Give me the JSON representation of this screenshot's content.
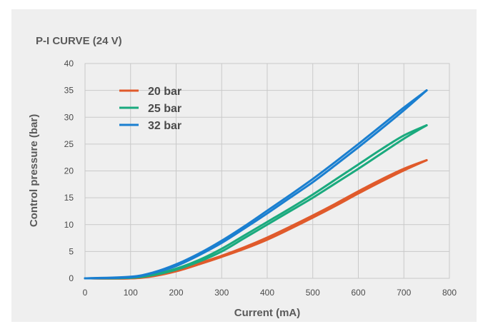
{
  "chart_data": {
    "type": "line",
    "title": "P-I CURVE (24 V)",
    "xlabel": "Current (mA)",
    "ylabel": "Control pressure (bar)",
    "xlim": [
      0,
      800
    ],
    "ylim": [
      0,
      40
    ],
    "x_ticks": [
      0,
      100,
      200,
      300,
      400,
      500,
      600,
      700,
      800
    ],
    "y_ticks": [
      0,
      5,
      10,
      15,
      20,
      25,
      30,
      35,
      40
    ],
    "grid": true,
    "legend_position": "top-left",
    "series": [
      {
        "name": "20 bar",
        "color": "#e05a2b",
        "up": {
          "x": [
            0,
            100,
            150,
            200,
            250,
            300,
            350,
            400,
            450,
            500,
            550,
            600,
            650,
            700,
            750
          ],
          "y": [
            0,
            0,
            0.4,
            1.3,
            2.6,
            4.0,
            5.5,
            7.2,
            9.2,
            11.3,
            13.5,
            15.8,
            18.0,
            20.1,
            22.0
          ]
        },
        "down": {
          "x": [
            750,
            700,
            650,
            600,
            550,
            500,
            450,
            400,
            350,
            300,
            250,
            200,
            150,
            100,
            0
          ],
          "y": [
            22.0,
            20.4,
            18.4,
            16.2,
            13.9,
            11.7,
            9.6,
            7.6,
            5.8,
            4.2,
            2.8,
            1.5,
            0.5,
            0,
            0
          ]
        }
      },
      {
        "name": "25 bar",
        "color": "#1aaa7e",
        "up": {
          "x": [
            0,
            100,
            150,
            200,
            250,
            300,
            350,
            400,
            450,
            500,
            550,
            600,
            650,
            700,
            750
          ],
          "y": [
            0,
            0.1,
            0.6,
            1.6,
            3.1,
            5.0,
            7.5,
            10.0,
            12.5,
            15.0,
            17.7,
            20.4,
            23.2,
            26.0,
            28.5
          ]
        },
        "down": {
          "x": [
            750,
            700,
            650,
            600,
            550,
            500,
            450,
            400,
            350,
            300,
            250,
            200,
            150,
            100,
            0
          ],
          "y": [
            28.5,
            26.6,
            24.0,
            21.2,
            18.4,
            15.6,
            13.0,
            10.5,
            8.0,
            5.5,
            3.4,
            1.8,
            0.7,
            0.1,
            0
          ]
        }
      },
      {
        "name": "32 bar",
        "color": "#1a7fd0",
        "up": {
          "x": [
            0,
            100,
            150,
            200,
            250,
            300,
            350,
            400,
            450,
            500,
            550,
            600,
            650,
            700,
            750
          ],
          "y": [
            0,
            0.2,
            1.0,
            2.3,
            4.3,
            6.6,
            9.3,
            12.1,
            15.0,
            17.9,
            21.1,
            24.4,
            27.8,
            31.3,
            35.0
          ]
        },
        "down": {
          "x": [
            750,
            700,
            650,
            600,
            550,
            500,
            450,
            400,
            350,
            300,
            250,
            200,
            150,
            100,
            0
          ],
          "y": [
            35.0,
            31.8,
            28.4,
            25.0,
            21.7,
            18.5,
            15.5,
            12.6,
            9.7,
            7.0,
            4.6,
            2.6,
            1.1,
            0.3,
            0
          ]
        }
      }
    ]
  }
}
